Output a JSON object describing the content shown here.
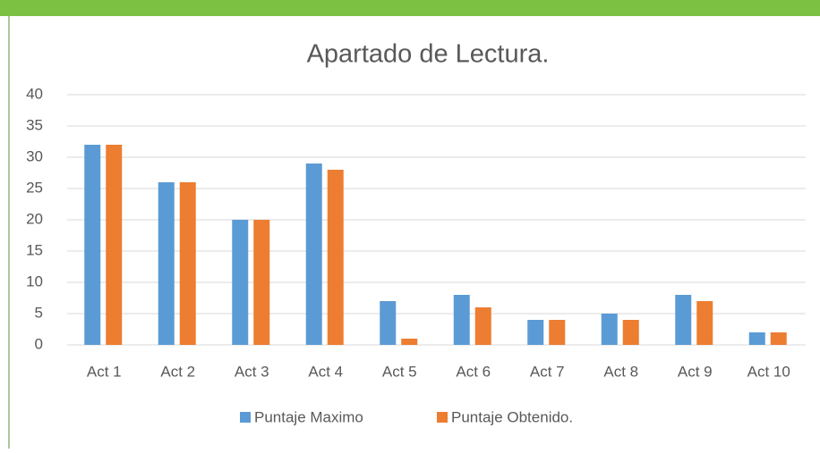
{
  "chart_data": {
    "type": "bar",
    "title": "Apartado de Lectura.",
    "categories": [
      "Act 1",
      "Act 2",
      "Act 3",
      "Act 4",
      "Act 5",
      "Act 6",
      "Act 7",
      "Act 8",
      "Act 9",
      "Act 10"
    ],
    "series": [
      {
        "name": "Puntaje Maximo",
        "color": "#5b9bd5",
        "values": [
          32,
          26,
          20,
          29,
          7,
          8,
          4,
          5,
          8,
          2
        ]
      },
      {
        "name": "Puntaje Obtenido.",
        "color": "#ed7d31",
        "values": [
          32,
          26,
          20,
          28,
          1,
          6,
          4,
          4,
          7,
          2
        ]
      }
    ],
    "ylim": [
      0,
      40
    ],
    "yticks": [
      0,
      5,
      10,
      15,
      20,
      25,
      30,
      35,
      40
    ],
    "grid": true,
    "legend": "bottom"
  }
}
